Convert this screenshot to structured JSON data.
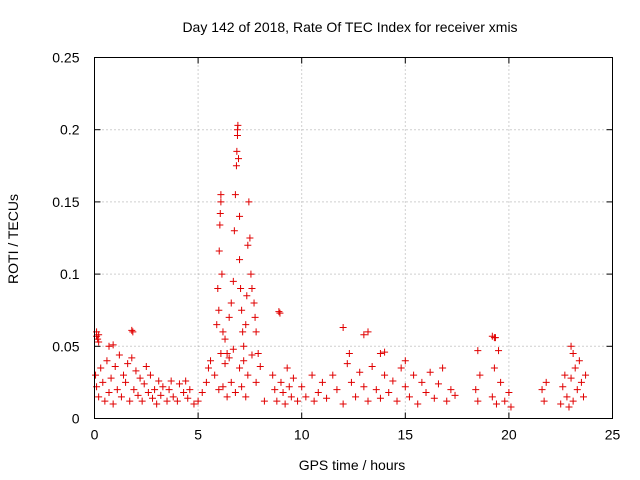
{
  "chart_data": {
    "type": "scatter",
    "title": "Day 142 of 2018, Rate Of TEC Index for receiver xmis",
    "xlabel": "GPS time / hours",
    "ylabel": "ROTI / TECUs",
    "xlim": [
      0,
      25
    ],
    "ylim": [
      0,
      0.25
    ],
    "x_ticks": [
      0,
      5,
      10,
      15,
      20,
      25
    ],
    "y_ticks": [
      0,
      0.05,
      0.1,
      0.15,
      0.2,
      0.25
    ],
    "x_tick_labels": [
      "0",
      "5",
      "10",
      "15",
      "20",
      "25"
    ],
    "y_tick_labels": [
      "0",
      "0.05",
      "0.1",
      "0.15",
      "0.2",
      "0.25"
    ],
    "grid": true,
    "marker": "+",
    "color": "#e00000",
    "series": [
      {
        "name": "ROTI",
        "points": [
          [
            0.1,
            0.06
          ],
          [
            0.1,
            0.057
          ],
          [
            0.15,
            0.055
          ],
          [
            0.2,
            0.053
          ],
          [
            0.2,
            0.058
          ],
          [
            0.7,
            0.05
          ],
          [
            0.9,
            0.051
          ],
          [
            1.8,
            0.061
          ],
          [
            1.85,
            0.06
          ],
          [
            12.0,
            0.063
          ],
          [
            12.3,
            0.045
          ],
          [
            13.0,
            0.058
          ],
          [
            13.2,
            0.06
          ],
          [
            13.8,
            0.045
          ],
          [
            14.0,
            0.046
          ],
          [
            15.0,
            0.04
          ],
          [
            18.5,
            0.047
          ],
          [
            19.2,
            0.057
          ],
          [
            19.3,
            0.056
          ],
          [
            19.35,
            0.056
          ],
          [
            19.5,
            0.047
          ],
          [
            23.0,
            0.05
          ],
          [
            23.1,
            0.045
          ],
          [
            8.9,
            0.074
          ],
          [
            8.95,
            0.073
          ],
          [
            0.05,
            0.03
          ],
          [
            0.1,
            0.022
          ],
          [
            0.2,
            0.015
          ],
          [
            0.3,
            0.035
          ],
          [
            0.4,
            0.025
          ],
          [
            0.5,
            0.012
          ],
          [
            0.6,
            0.04
          ],
          [
            0.7,
            0.018
          ],
          [
            0.8,
            0.028
          ],
          [
            0.9,
            0.01
          ],
          [
            1.0,
            0.036
          ],
          [
            1.1,
            0.02
          ],
          [
            1.2,
            0.044
          ],
          [
            1.3,
            0.015
          ],
          [
            1.4,
            0.03
          ],
          [
            1.5,
            0.025
          ],
          [
            1.6,
            0.038
          ],
          [
            1.7,
            0.012
          ],
          [
            1.8,
            0.042
          ],
          [
            1.9,
            0.02
          ],
          [
            2.0,
            0.033
          ],
          [
            2.1,
            0.016
          ],
          [
            2.2,
            0.028
          ],
          [
            2.3,
            0.012
          ],
          [
            2.4,
            0.024
          ],
          [
            2.5,
            0.036
          ],
          [
            2.6,
            0.018
          ],
          [
            2.7,
            0.03
          ],
          [
            2.8,
            0.014
          ],
          [
            2.9,
            0.02
          ],
          [
            3.0,
            0.01
          ],
          [
            3.1,
            0.026
          ],
          [
            3.2,
            0.016
          ],
          [
            3.3,
            0.022
          ],
          [
            3.5,
            0.012
          ],
          [
            3.6,
            0.02
          ],
          [
            3.7,
            0.026
          ],
          [
            3.8,
            0.015
          ],
          [
            4.0,
            0.012
          ],
          [
            4.1,
            0.024
          ],
          [
            4.3,
            0.018
          ],
          [
            4.4,
            0.026
          ],
          [
            4.5,
            0.014
          ],
          [
            4.6,
            0.02
          ],
          [
            4.8,
            0.01
          ],
          [
            5.0,
            0.012
          ],
          [
            5.2,
            0.018
          ],
          [
            5.4,
            0.025
          ],
          [
            5.5,
            0.035
          ],
          [
            5.6,
            0.04
          ],
          [
            5.8,
            0.03
          ],
          [
            6.0,
            0.02
          ],
          [
            6.1,
            0.045
          ],
          [
            6.2,
            0.022
          ],
          [
            6.3,
            0.038
          ],
          [
            6.4,
            0.015
          ],
          [
            6.5,
            0.042
          ],
          [
            6.6,
            0.025
          ],
          [
            6.7,
            0.048
          ],
          [
            6.8,
            0.018
          ],
          [
            7.0,
            0.035
          ],
          [
            7.1,
            0.022
          ],
          [
            7.2,
            0.04
          ],
          [
            7.3,
            0.015
          ],
          [
            7.4,
            0.03
          ],
          [
            7.6,
            0.044
          ],
          [
            7.8,
            0.025
          ],
          [
            8.0,
            0.036
          ],
          [
            8.2,
            0.012
          ],
          [
            5.9,
            0.065
          ],
          [
            5.95,
            0.09
          ],
          [
            6.0,
            0.075
          ],
          [
            6.02,
            0.116
          ],
          [
            6.05,
            0.134
          ],
          [
            6.07,
            0.142
          ],
          [
            6.1,
            0.15
          ],
          [
            6.1,
            0.155
          ],
          [
            6.15,
            0.1
          ],
          [
            6.2,
            0.06
          ],
          [
            6.3,
            0.055
          ],
          [
            6.5,
            0.07
          ],
          [
            6.6,
            0.08
          ],
          [
            6.7,
            0.095
          ],
          [
            6.75,
            0.13
          ],
          [
            6.8,
            0.155
          ],
          [
            6.85,
            0.175
          ],
          [
            6.87,
            0.185
          ],
          [
            6.9,
            0.196
          ],
          [
            6.9,
            0.2
          ],
          [
            6.92,
            0.203
          ],
          [
            6.95,
            0.18
          ],
          [
            7.0,
            0.11
          ],
          [
            7.0,
            0.14
          ],
          [
            7.05,
            0.09
          ],
          [
            7.1,
            0.075
          ],
          [
            7.15,
            0.06
          ],
          [
            7.2,
            0.05
          ],
          [
            7.3,
            0.065
          ],
          [
            7.35,
            0.085
          ],
          [
            7.4,
            0.12
          ],
          [
            7.45,
            0.15
          ],
          [
            7.5,
            0.125
          ],
          [
            7.55,
            0.1
          ],
          [
            7.6,
            0.09
          ],
          [
            7.7,
            0.08
          ],
          [
            7.75,
            0.07
          ],
          [
            7.8,
            0.06
          ],
          [
            7.9,
            0.045
          ],
          [
            6.4,
            0.045
          ],
          [
            8.6,
            0.03
          ],
          [
            8.7,
            0.02
          ],
          [
            8.8,
            0.012
          ],
          [
            9.0,
            0.025
          ],
          [
            9.1,
            0.018
          ],
          [
            9.2,
            0.01
          ],
          [
            9.3,
            0.035
          ],
          [
            9.4,
            0.022
          ],
          [
            9.5,
            0.015
          ],
          [
            9.6,
            0.028
          ],
          [
            9.8,
            0.012
          ],
          [
            10.0,
            0.022
          ],
          [
            10.2,
            0.015
          ],
          [
            10.5,
            0.03
          ],
          [
            10.6,
            0.012
          ],
          [
            10.8,
            0.018
          ],
          [
            11.0,
            0.025
          ],
          [
            11.2,
            0.014
          ],
          [
            11.5,
            0.03
          ],
          [
            11.7,
            0.02
          ],
          [
            12.0,
            0.01
          ],
          [
            12.2,
            0.038
          ],
          [
            12.4,
            0.025
          ],
          [
            12.6,
            0.015
          ],
          [
            12.8,
            0.032
          ],
          [
            13.0,
            0.022
          ],
          [
            13.2,
            0.012
          ],
          [
            13.4,
            0.036
          ],
          [
            13.6,
            0.02
          ],
          [
            13.8,
            0.014
          ],
          [
            14.0,
            0.03
          ],
          [
            14.2,
            0.018
          ],
          [
            14.4,
            0.026
          ],
          [
            14.6,
            0.012
          ],
          [
            14.8,
            0.035
          ],
          [
            15.0,
            0.022
          ],
          [
            15.2,
            0.015
          ],
          [
            15.4,
            0.03
          ],
          [
            15.6,
            0.01
          ],
          [
            15.8,
            0.025
          ],
          [
            16.0,
            0.018
          ],
          [
            16.2,
            0.032
          ],
          [
            16.4,
            0.014
          ],
          [
            16.6,
            0.024
          ],
          [
            16.8,
            0.035
          ],
          [
            17.0,
            0.012
          ],
          [
            17.2,
            0.02
          ],
          [
            17.4,
            0.016
          ],
          [
            18.4,
            0.02
          ],
          [
            18.5,
            0.012
          ],
          [
            18.6,
            0.03
          ],
          [
            19.2,
            0.015
          ],
          [
            19.3,
            0.035
          ],
          [
            19.4,
            0.01
          ],
          [
            19.6,
            0.025
          ],
          [
            19.8,
            0.012
          ],
          [
            20.0,
            0.018
          ],
          [
            20.1,
            0.008
          ],
          [
            21.6,
            0.02
          ],
          [
            21.7,
            0.012
          ],
          [
            21.8,
            0.025
          ],
          [
            22.5,
            0.01
          ],
          [
            22.6,
            0.022
          ],
          [
            22.8,
            0.015
          ],
          [
            23.0,
            0.028
          ],
          [
            23.1,
            0.012
          ],
          [
            23.2,
            0.035
          ],
          [
            23.3,
            0.02
          ],
          [
            23.4,
            0.04
          ],
          [
            23.5,
            0.025
          ],
          [
            23.6,
            0.015
          ],
          [
            23.7,
            0.03
          ],
          [
            22.7,
            0.03
          ],
          [
            22.9,
            0.008
          ]
        ]
      }
    ]
  }
}
